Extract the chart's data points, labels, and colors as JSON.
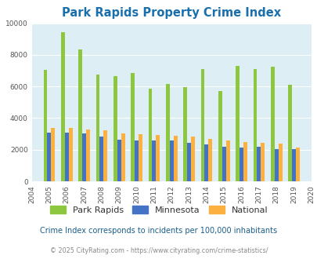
{
  "title": "Park Rapids Property Crime Index",
  "years": [
    2004,
    2005,
    2006,
    2007,
    2008,
    2009,
    2010,
    2011,
    2012,
    2013,
    2014,
    2015,
    2016,
    2017,
    2018,
    2019,
    2020
  ],
  "park_rapids": [
    null,
    7050,
    9450,
    8350,
    6750,
    6650,
    6850,
    5850,
    6150,
    5980,
    7100,
    5700,
    7300,
    7100,
    7250,
    6100,
    null
  ],
  "minnesota": [
    null,
    3100,
    3100,
    3020,
    2850,
    2650,
    2580,
    2600,
    2580,
    2450,
    2320,
    2200,
    2150,
    2200,
    2050,
    2050,
    null
  ],
  "national": [
    null,
    3400,
    3380,
    3300,
    3250,
    3020,
    3000,
    2950,
    2900,
    2850,
    2700,
    2580,
    2480,
    2450,
    2380,
    2120,
    null
  ],
  "ylim": [
    0,
    10000
  ],
  "yticks": [
    0,
    2000,
    4000,
    6000,
    8000,
    10000
  ],
  "bar_width": 0.22,
  "color_park_rapids": "#8dc63f",
  "color_minnesota": "#4472c4",
  "color_national": "#fbb040",
  "background_color": "#ddeef5",
  "title_color": "#1a6fad",
  "subtitle": "Crime Index corresponds to incidents per 100,000 inhabitants",
  "footer": "© 2025 CityRating.com - https://www.cityrating.com/crime-statistics/",
  "legend_labels": [
    "Park Rapids",
    "Minnesota",
    "National"
  ]
}
